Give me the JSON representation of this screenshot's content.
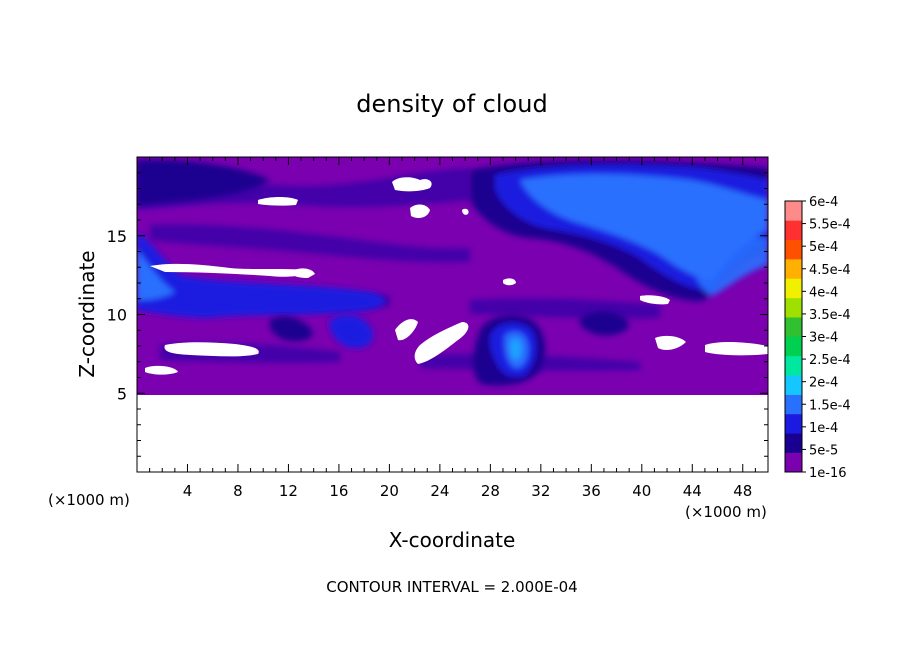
{
  "chart_data": {
    "type": "heatmap",
    "title": "density of cloud",
    "xlabel": "X-coordinate",
    "ylabel": "Z-coordinate",
    "x_unit_label_left": "(×1000 m)",
    "x_unit_label_right": "(×1000 m)",
    "xlim": [
      0,
      50
    ],
    "ylim": [
      0,
      20
    ],
    "xticks": [
      4,
      8,
      12,
      16,
      20,
      24,
      28,
      32,
      36,
      40,
      44,
      48
    ],
    "yticks": [
      5,
      10,
      15
    ],
    "colorbar": {
      "levels": [
        "1e-16",
        "5e-5",
        "1e-4",
        "1.5e-4",
        "2e-4",
        "2.5e-4",
        "3e-4",
        "3.5e-4",
        "4e-4",
        "4.5e-4",
        "5e-4",
        "5.5e-4",
        "6e-4"
      ],
      "colors": [
        "#7a00b0",
        "#1a0090",
        "#1a1ae0",
        "#2a70ff",
        "#14c8ff",
        "#00e8a0",
        "#00d050",
        "#30c030",
        "#a0e000",
        "#f0f000",
        "#ffb000",
        "#ff5000",
        "#ff3030",
        "#ff8a8a"
      ]
    },
    "contour_interval_text": "CONTOUR INTERVAL = 2.000E-04",
    "field_region": {
      "x": [
        0,
        50
      ],
      "z": [
        5,
        20
      ]
    }
  }
}
